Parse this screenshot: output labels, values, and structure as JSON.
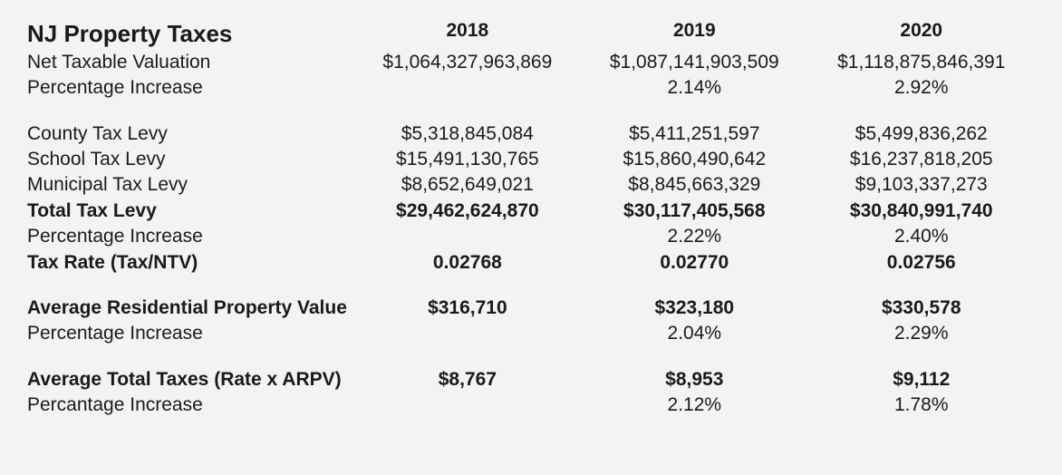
{
  "title": "NJ Property Taxes",
  "years": [
    "2018",
    "2019",
    "2020"
  ],
  "rows": [
    {
      "label": "Net Taxable Valuation",
      "bold": false,
      "values": [
        "$1,064,327,963,869",
        "$1,087,141,903,509",
        "$1,118,875,846,391"
      ]
    },
    {
      "label": "Percentage Increase",
      "bold": false,
      "values": [
        "",
        "2.14%",
        "2.92%"
      ]
    },
    {
      "spacer": true
    },
    {
      "label": "County Tax Levy",
      "bold": false,
      "values": [
        "$5,318,845,084",
        "$5,411,251,597",
        "$5,499,836,262"
      ]
    },
    {
      "label": "School Tax Levy",
      "bold": false,
      "values": [
        "$15,491,130,765",
        "$15,860,490,642",
        "$16,237,818,205"
      ]
    },
    {
      "label": "Municipal Tax Levy",
      "bold": false,
      "values": [
        "$8,652,649,021",
        "$8,845,663,329",
        "$9,103,337,273"
      ]
    },
    {
      "label": "Total Tax Levy",
      "bold": true,
      "values": [
        "$29,462,624,870",
        "$30,117,405,568",
        "$30,840,991,740"
      ]
    },
    {
      "label": "Percentage Increase",
      "bold": false,
      "values": [
        "",
        "2.22%",
        "2.40%"
      ]
    },
    {
      "label": "Tax Rate (Tax/NTV)",
      "bold": true,
      "values": [
        "0.02768",
        "0.02770",
        "0.02756"
      ]
    },
    {
      "spacer": true
    },
    {
      "label": "Average Residential Property Value",
      "bold": true,
      "values": [
        "$316,710",
        "$323,180",
        "$330,578"
      ]
    },
    {
      "label": "Percentage Increase",
      "bold": false,
      "values": [
        "",
        "2.04%",
        "2.29%"
      ]
    },
    {
      "spacer": true
    },
    {
      "label": "Average Total Taxes (Rate x ARPV)",
      "bold": true,
      "values": [
        "$8,767",
        "$8,953",
        "$9,112"
      ]
    },
    {
      "label": "Percantage Increase",
      "bold": false,
      "values": [
        "",
        "2.12%",
        "1.78%"
      ]
    }
  ]
}
